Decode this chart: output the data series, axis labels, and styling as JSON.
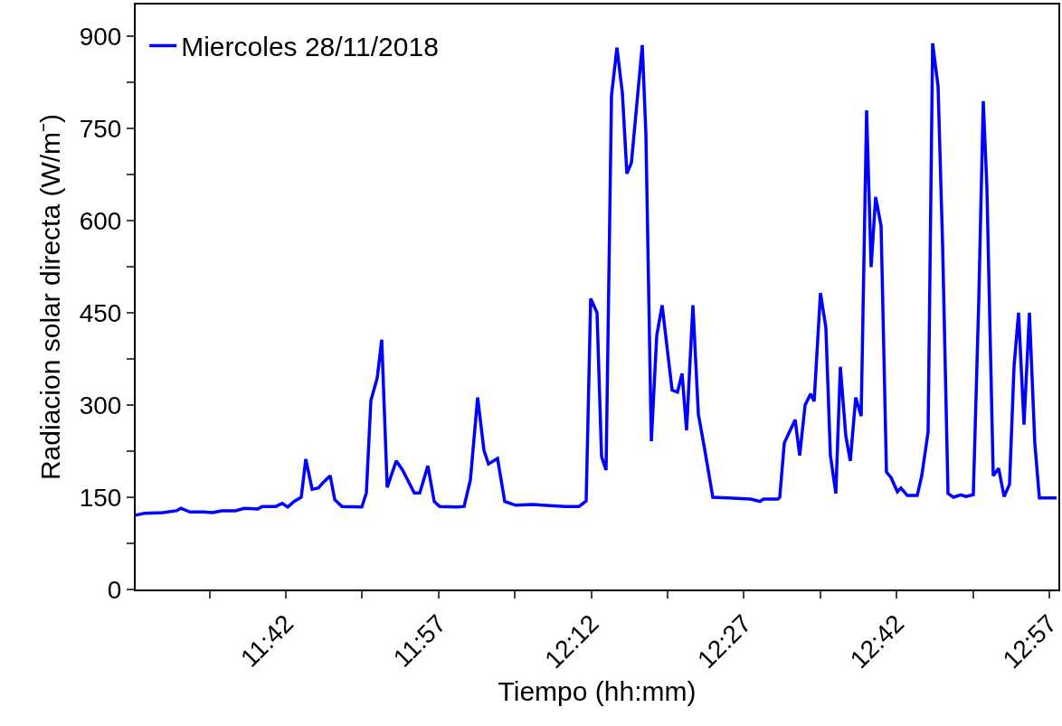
{
  "chart_data": {
    "type": "line",
    "xlabel": "Tiempo (hh:mm)",
    "ylabel": "Radiacion solar directa (W/m⁻)",
    "xlim": [
      11.4541,
      12.9649
    ],
    "xticks": [
      {
        "value": 11.575,
        "label": null
      },
      {
        "value": 11.7,
        "label": "11:42"
      },
      {
        "value": 11.825,
        "label": null
      },
      {
        "value": 11.95,
        "label": "11:57"
      },
      {
        "value": 12.075,
        "label": null
      },
      {
        "value": 12.2,
        "label": "12:12"
      },
      {
        "value": 12.325,
        "label": null
      },
      {
        "value": 12.45,
        "label": "12:27"
      },
      {
        "value": 12.575,
        "label": null
      },
      {
        "value": 12.7,
        "label": "12:42"
      },
      {
        "value": 12.825,
        "label": null
      },
      {
        "value": 12.95,
        "label": "12:57"
      }
    ],
    "ylim": [
      0,
      951
    ],
    "yticks": [
      0,
      {
        "value": 75,
        "label": null
      },
      150,
      {
        "value": 225,
        "label": null
      },
      300,
      {
        "value": 375,
        "label": null
      },
      450,
      {
        "value": 525,
        "label": null
      },
      600,
      {
        "value": 675,
        "label": null
      },
      750,
      {
        "value": 825,
        "label": null
      },
      900
    ],
    "grid": false,
    "legend": "top left",
    "marker": "none",
    "line_style": "solid",
    "series": [
      {
        "name": "Miercoles 28/11/2018",
        "color": "#0000ff",
        "x": [
          11.4541,
          11.469,
          11.4986,
          11.5208,
          11.5282,
          11.543,
          11.5652,
          11.58,
          11.5948,
          11.6171,
          11.6319,
          11.6541,
          11.6615,
          11.6837,
          11.6941,
          11.703,
          11.7133,
          11.7252,
          11.7326,
          11.743,
          11.7533,
          11.7622,
          11.7726,
          11.78,
          11.7918,
          11.8244,
          11.8318,
          11.8392,
          11.8496,
          11.857,
          11.8659,
          11.8807,
          11.8911,
          11.9103,
          11.9192,
          11.9325,
          11.9429,
          11.9518,
          11.9799,
          11.9918,
          12.0021,
          12.014,
          12.0244,
          12.0318,
          12.0466,
          12.0584,
          12.0762,
          12.1058,
          12.1206,
          12.1577,
          12.1799,
          12.1917,
          12.1991,
          12.2095,
          12.2169,
          12.2243,
          12.2332,
          12.2421,
          12.251,
          12.2584,
          12.2658,
          12.2836,
          12.2895,
          12.2984,
          12.3073,
          12.3161,
          12.3324,
          12.3413,
          12.3487,
          12.3561,
          12.3665,
          12.3754,
          12.3857,
          12.3991,
          12.4243,
          12.4613,
          12.4761,
          12.482,
          12.5057,
          12.5087,
          12.5161,
          12.5339,
          12.5413,
          12.5502,
          12.559,
          12.565,
          12.5753,
          12.5842,
          12.5916,
          12.6005,
          12.6079,
          12.6168,
          12.6242,
          12.6331,
          12.642,
          12.6464,
          12.6509,
          12.6583,
          12.6657,
          12.6746,
          12.6834,
          12.6909,
          12.7012,
          12.7071,
          12.7175,
          12.7338,
          12.7412,
          12.7516,
          12.759,
          12.7679,
          12.7753,
          12.7842,
          12.7931,
          12.8049,
          12.8138,
          12.8256,
          12.8345,
          12.8419,
          12.8478,
          12.8582,
          12.8671,
          12.876,
          12.8849,
          12.8923,
          12.8997,
          12.9086,
          12.9175,
          12.9263,
          12.9338,
          12.9619
        ],
        "values": [
          121,
          124,
          125,
          128,
          132,
          126,
          126,
          125,
          128,
          128,
          132,
          131,
          135,
          135,
          140,
          134,
          143,
          150,
          212,
          163,
          165,
          175,
          185,
          146,
          135,
          134,
          157,
          307,
          344,
          406,
          166,
          209,
          194,
          157,
          157,
          201,
          143,
          135,
          134,
          135,
          178,
          312,
          226,
          204,
          213,
          143,
          137,
          138,
          137,
          135,
          135,
          144,
          473,
          450,
          216,
          194,
          803,
          881,
          807,
          676,
          694,
          885,
          741,
          241,
          413,
          462,
          324,
          321,
          351,
          259,
          462,
          285,
          228,
          150,
          149,
          147,
          143,
          147,
          147,
          150,
          238,
          276,
          218,
          300,
          318,
          306,
          482,
          426,
          218,
          156,
          362,
          250,
          209,
          312,
          282,
          529,
          779,
          524,
          638,
          591,
          191,
          182,
          159,
          165,
          153,
          153,
          185,
          256,
          888,
          818,
          562,
          156,
          150,
          154,
          151,
          154,
          468,
          794,
          656,
          185,
          197,
          151,
          171,
          362,
          450,
          268,
          450,
          238,
          149,
          149
        ]
      }
    ]
  }
}
